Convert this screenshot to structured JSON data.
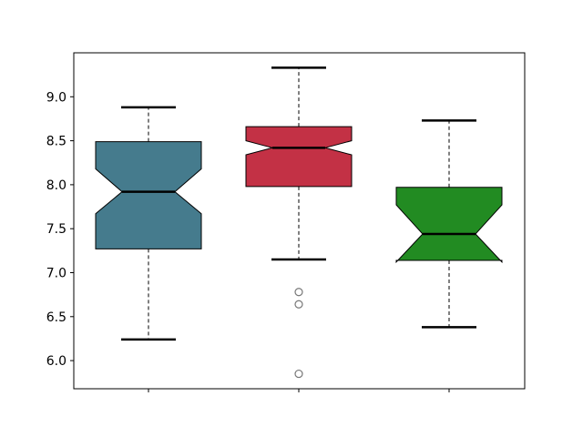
{
  "chart_data": {
    "type": "boxplot",
    "notched": true,
    "title": "",
    "xlabel": "",
    "ylabel": "",
    "ylim": [
      5.68,
      9.5
    ],
    "yticks": [
      "6.0",
      "6.5",
      "7.0",
      "7.5",
      "8.0",
      "8.5",
      "9.0"
    ],
    "xtick_labels": [
      "",
      "",
      ""
    ],
    "grid": false,
    "boxes": [
      {
        "color": "#457B8D",
        "whisker_low": 6.24,
        "q1": 7.27,
        "median": 7.92,
        "q3": 8.49,
        "whisker_high": 8.88,
        "notch_low": 7.67,
        "notch_high": 8.18,
        "outliers": []
      },
      {
        "color": "#C33145",
        "whisker_low": 7.15,
        "q1": 7.98,
        "median": 8.42,
        "q3": 8.66,
        "whisker_high": 9.33,
        "notch_low": 8.34,
        "notch_high": 8.5,
        "outliers": [
          6.78,
          6.64,
          5.85
        ]
      },
      {
        "color": "#228B22",
        "whisker_low": 6.38,
        "q1": 7.14,
        "median": 7.44,
        "q3": 7.97,
        "whisker_high": 8.73,
        "notch_low": 7.12,
        "notch_high": 7.77,
        "outliers": []
      }
    ]
  }
}
